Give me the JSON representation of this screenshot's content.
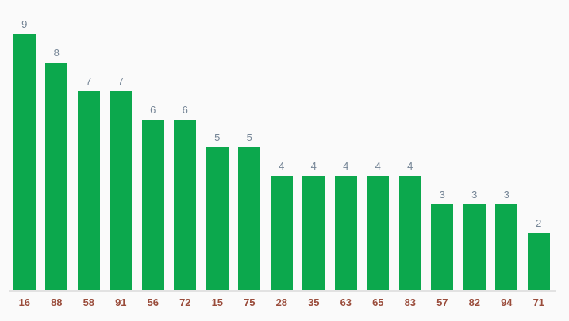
{
  "chart_data": {
    "type": "bar",
    "title": "",
    "xlabel": "",
    "ylabel": "",
    "categories": [
      "16",
      "88",
      "58",
      "91",
      "56",
      "72",
      "15",
      "75",
      "28",
      "35",
      "63",
      "65",
      "83",
      "57",
      "82",
      "94",
      "71"
    ],
    "values": [
      9,
      8,
      7,
      7,
      6,
      6,
      5,
      5,
      4,
      4,
      4,
      4,
      4,
      3,
      3,
      3,
      2
    ],
    "ylim": [
      0,
      9
    ],
    "grid": false,
    "legend": "none",
    "value_labels_visible": true,
    "colors": {
      "bar": "#0ca84d",
      "value_label": "#758596",
      "category_label": "#9a4c3b",
      "axis_line": "#e2e2e2",
      "background": "#fafafa"
    }
  }
}
